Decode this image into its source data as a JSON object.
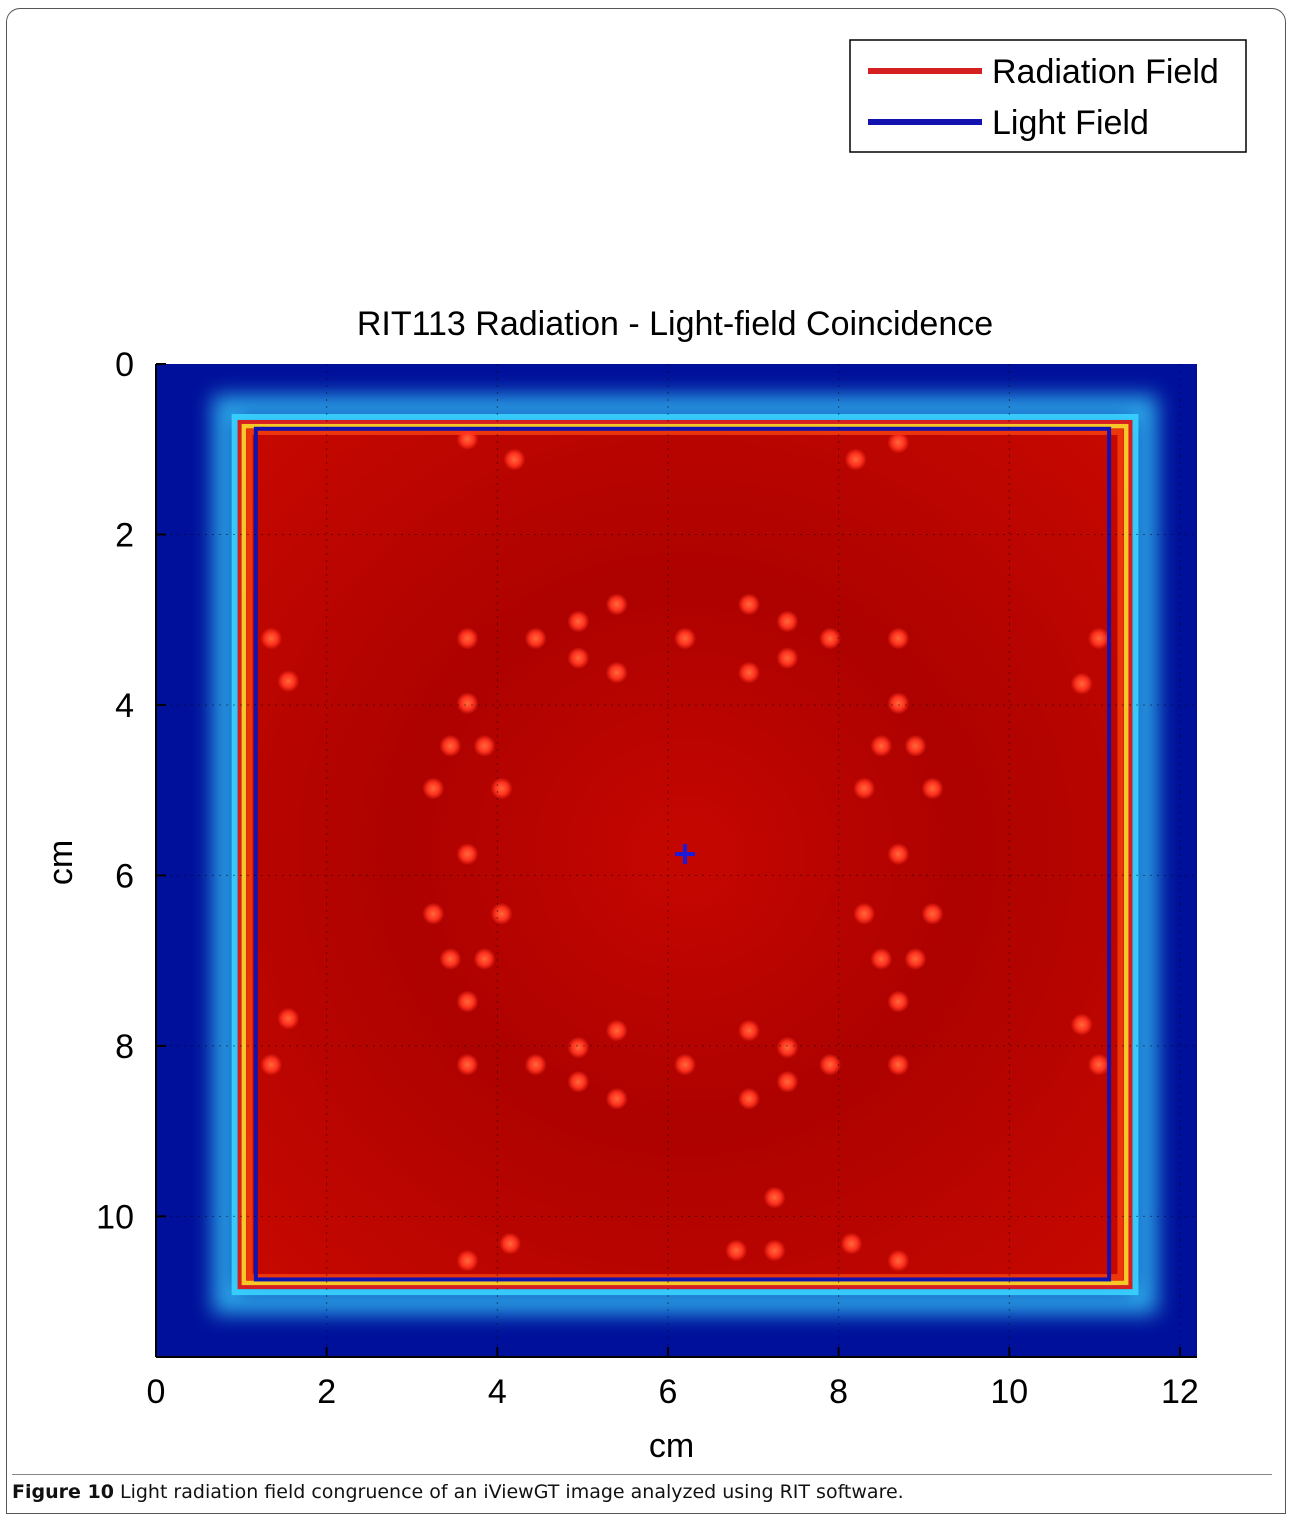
{
  "chart_data": {
    "type": "heatmap",
    "title": "RIT113 Radiation - Light-field Coincidence",
    "xlabel": "cm",
    "ylabel": "cm",
    "xlim": [
      0,
      12.2
    ],
    "ylim": [
      11.65,
      0
    ],
    "xticks": [
      "0",
      "2",
      "4",
      "6",
      "8",
      "10",
      "12"
    ],
    "yticks": [
      "0",
      "2",
      "4",
      "6",
      "8",
      "10"
    ],
    "x_tick_values": [
      0,
      2,
      4,
      6,
      8,
      10,
      12
    ],
    "y_tick_values": [
      0,
      2,
      4,
      6,
      8,
      10
    ],
    "grid": true,
    "legend_position": "top-right",
    "colormap": {
      "outside": "#00109a",
      "field_dark": "#9e0000",
      "field": "#c20500",
      "edge_yellow": "#ffea2e",
      "edge_cyan": "#38d4ff",
      "marker": "#ff3b22"
    },
    "series": [
      {
        "name": "Radiation Field",
        "color": "#d42020",
        "rect": {
          "x0": 0.98,
          "y0": 0.68,
          "x1": 11.42,
          "y1": 10.83
        }
      },
      {
        "name": "Light Field",
        "color": "#1212b0",
        "rect": {
          "x0": 1.17,
          "y0": 0.76,
          "x1": 11.17,
          "y1": 10.74
        }
      }
    ],
    "center_marker": {
      "x": 6.2,
      "y": 5.75,
      "color": "#1a1ad8"
    },
    "markers": [
      [
        3.65,
        0.88
      ],
      [
        4.2,
        1.12
      ],
      [
        8.2,
        1.12
      ],
      [
        8.7,
        0.92
      ],
      [
        1.35,
        3.22
      ],
      [
        1.55,
        3.72
      ],
      [
        11.05,
        3.22
      ],
      [
        10.85,
        3.75
      ],
      [
        3.65,
        3.22
      ],
      [
        4.45,
        3.22
      ],
      [
        4.95,
        3.02
      ],
      [
        4.95,
        3.45
      ],
      [
        5.4,
        2.82
      ],
      [
        5.4,
        3.62
      ],
      [
        6.2,
        3.22
      ],
      [
        6.95,
        2.82
      ],
      [
        6.95,
        3.62
      ],
      [
        7.4,
        3.02
      ],
      [
        7.4,
        3.45
      ],
      [
        7.9,
        3.22
      ],
      [
        8.7,
        3.22
      ],
      [
        3.65,
        3.98
      ],
      [
        3.45,
        4.48
      ],
      [
        3.85,
        4.48
      ],
      [
        3.25,
        4.98
      ],
      [
        4.05,
        4.98
      ],
      [
        3.65,
        5.75
      ],
      [
        3.25,
        6.45
      ],
      [
        4.05,
        6.45
      ],
      [
        3.45,
        6.98
      ],
      [
        3.85,
        6.98
      ],
      [
        3.65,
        7.48
      ],
      [
        8.7,
        3.98
      ],
      [
        8.5,
        4.48
      ],
      [
        8.9,
        4.48
      ],
      [
        8.3,
        4.98
      ],
      [
        9.1,
        4.98
      ],
      [
        8.7,
        5.75
      ],
      [
        8.3,
        6.45
      ],
      [
        9.1,
        6.45
      ],
      [
        8.5,
        6.98
      ],
      [
        8.9,
        6.98
      ],
      [
        8.7,
        7.48
      ],
      [
        1.55,
        7.68
      ],
      [
        1.35,
        8.22
      ],
      [
        10.85,
        7.75
      ],
      [
        11.05,
        8.22
      ],
      [
        3.65,
        8.22
      ],
      [
        4.45,
        8.22
      ],
      [
        4.95,
        8.02
      ],
      [
        4.95,
        8.42
      ],
      [
        5.4,
        7.82
      ],
      [
        5.4,
        8.62
      ],
      [
        6.2,
        8.22
      ],
      [
        6.95,
        7.82
      ],
      [
        6.95,
        8.62
      ],
      [
        7.4,
        8.02
      ],
      [
        7.4,
        8.42
      ],
      [
        7.9,
        8.22
      ],
      [
        8.7,
        8.22
      ],
      [
        7.25,
        9.78
      ],
      [
        3.65,
        10.52
      ],
      [
        4.15,
        10.32
      ],
      [
        6.8,
        10.4
      ],
      [
        7.25,
        10.4
      ],
      [
        8.15,
        10.32
      ],
      [
        8.7,
        10.52
      ]
    ]
  },
  "caption": {
    "label": "Figure 10",
    "text": " Light radiation field congruence of an iViewGT image analyzed using RIT software."
  }
}
